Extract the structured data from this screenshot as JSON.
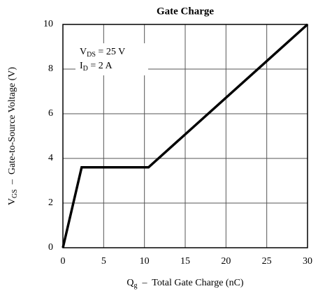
{
  "chart_data": {
    "type": "line",
    "title": "Gate Charge",
    "x_label": {
      "symbol": "Q",
      "subscript": "g",
      "text": "  –  Total Gate Charge (nC)"
    },
    "y_label": {
      "symbol": "V",
      "subscript": "GS",
      "text": "  –  Gate-to-Source Voltage (V)"
    },
    "annotations": [
      {
        "symbol": "V",
        "subscript": "DS",
        "text": " = 25 V"
      },
      {
        "symbol": "I",
        "subscript": "D",
        "text": " = 2 A"
      }
    ],
    "x": [
      0,
      2.3,
      10.5,
      30
    ],
    "values": [
      0,
      3.6,
      3.6,
      10
    ],
    "color": "#000000",
    "xlim": [
      0,
      30
    ],
    "ylim": [
      0,
      10
    ],
    "xticks": [
      0,
      5,
      10,
      15,
      20,
      25,
      30
    ],
    "yticks": [
      0,
      2,
      4,
      6,
      8,
      10
    ],
    "grid": true
  }
}
